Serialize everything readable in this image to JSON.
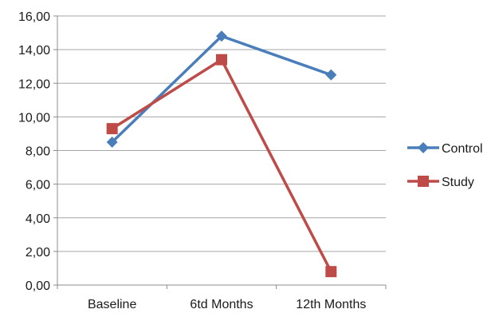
{
  "chart_data": {
    "type": "line",
    "categories": [
      "Baseline",
      "6td Months",
      "12th Months"
    ],
    "series": [
      {
        "name": "Control",
        "values": [
          8.5,
          14.8,
          12.5
        ],
        "color": "#4a7ebb",
        "marker": "diamond"
      },
      {
        "name": "Study",
        "values": [
          9.3,
          13.4,
          0.8
        ],
        "color": "#be4b48",
        "marker": "square"
      }
    ],
    "ylim": [
      0,
      16
    ],
    "ytick_labels": [
      "0,00",
      "2,00",
      "4,00",
      "6,00",
      "8,00",
      "10,00",
      "12,00",
      "14,00",
      "16,00"
    ],
    "grid": true,
    "legend_position": "right",
    "title": "",
    "xlabel": "",
    "ylabel": ""
  }
}
